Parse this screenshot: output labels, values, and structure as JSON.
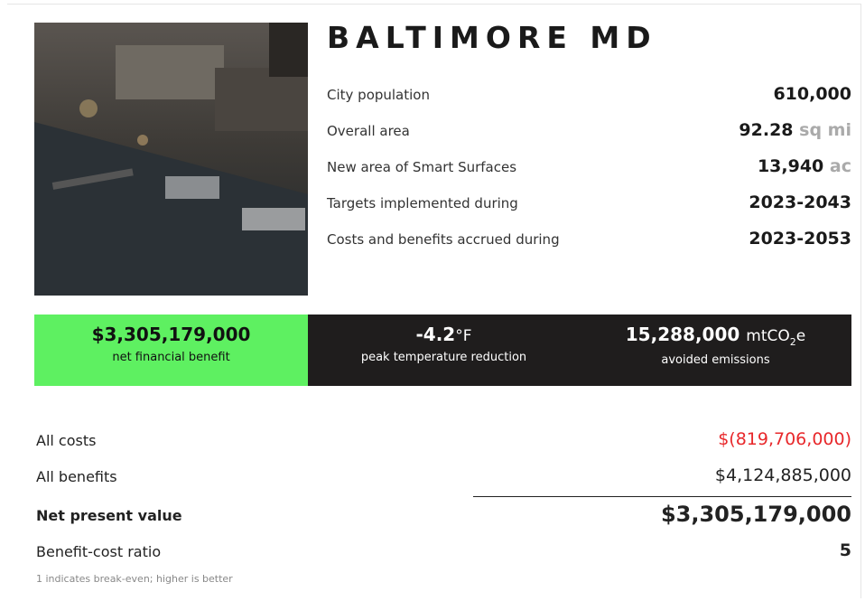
{
  "header": {
    "title": "BALTIMORE MD"
  },
  "stats": [
    {
      "label": "City population",
      "value": "610,000"
    },
    {
      "label": "Overall area",
      "value": "92.28",
      "unit": "sq mi"
    },
    {
      "label": "New area of Smart Surfaces",
      "value": "13,940",
      "unit": "ac"
    },
    {
      "label": "Targets implemented during",
      "value": "2023-2043"
    },
    {
      "label": "Costs and benefits accrued during",
      "value": "2023-2053"
    }
  ],
  "highlights": [
    {
      "value": "$3,305,179,000",
      "label": "net financial benefit"
    },
    {
      "value": "-4.2",
      "unit": "°F",
      "label": "peak temperature reduction"
    },
    {
      "value": "15,288,000",
      "unit": "mtCO",
      "unit_sub": "2",
      "unit_end": "e",
      "label": "avoided emissions"
    }
  ],
  "summary": [
    {
      "label": "All costs",
      "value": "$(819,706,000)"
    },
    {
      "label": "All benefits",
      "value": "$4,124,885,000"
    },
    {
      "label": "Net present value",
      "value": "$3,305,179,000"
    },
    {
      "label": "Benefit-cost ratio",
      "value": "5"
    }
  ],
  "note": "1 indicates break-even; higher is better"
}
